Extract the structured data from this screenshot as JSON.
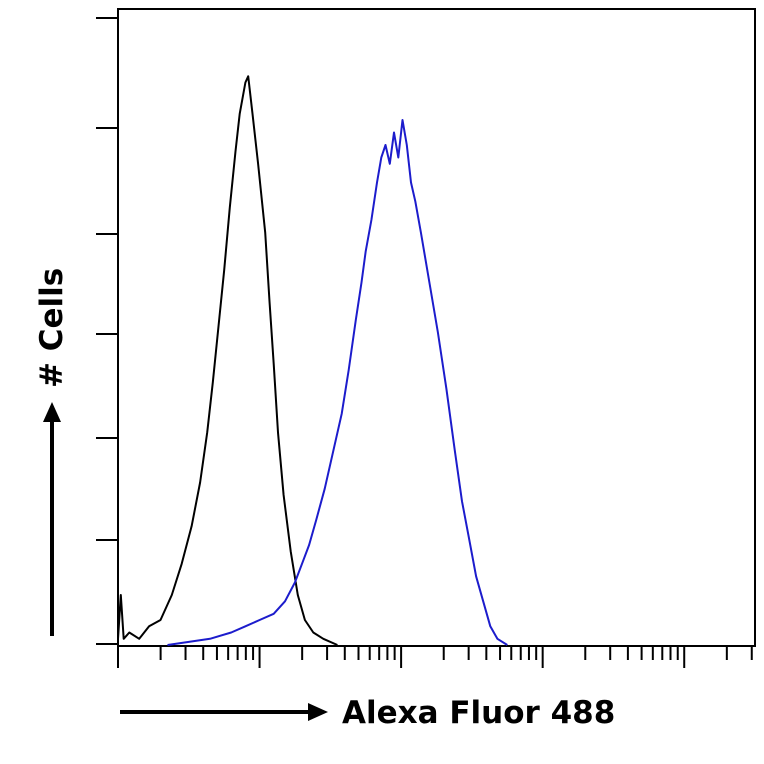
{
  "chart_data": {
    "type": "line",
    "title": "",
    "xlabel": "Alexa Fluor 488",
    "ylabel": "# Cells",
    "x_scale": "log",
    "xlim_decades": [
      0,
      4.5
    ],
    "ylim": [
      0,
      100
    ],
    "grid": false,
    "legend": "none",
    "series": [
      {
        "color": "#000000",
        "points": [
          [
            0.0,
            1
          ],
          [
            0.02,
            8
          ],
          [
            0.04,
            1
          ],
          [
            0.08,
            2
          ],
          [
            0.15,
            1
          ],
          [
            0.22,
            3
          ],
          [
            0.3,
            4
          ],
          [
            0.38,
            8
          ],
          [
            0.45,
            13
          ],
          [
            0.52,
            19
          ],
          [
            0.58,
            26
          ],
          [
            0.63,
            34
          ],
          [
            0.67,
            42
          ],
          [
            0.71,
            51
          ],
          [
            0.75,
            60
          ],
          [
            0.79,
            70
          ],
          [
            0.83,
            79
          ],
          [
            0.86,
            85
          ],
          [
            0.9,
            90
          ],
          [
            0.92,
            91
          ],
          [
            0.95,
            85
          ],
          [
            0.99,
            77
          ],
          [
            1.04,
            66
          ],
          [
            1.07,
            55
          ],
          [
            1.1,
            45
          ],
          [
            1.13,
            34
          ],
          [
            1.17,
            24
          ],
          [
            1.22,
            15
          ],
          [
            1.27,
            8
          ],
          [
            1.32,
            4
          ],
          [
            1.38,
            2
          ],
          [
            1.45,
            1
          ],
          [
            1.55,
            0
          ]
        ]
      },
      {
        "color": "#1c1ccc",
        "points": [
          [
            0.35,
            0
          ],
          [
            0.5,
            0.5
          ],
          [
            0.65,
            1
          ],
          [
            0.8,
            2
          ],
          [
            0.9,
            3
          ],
          [
            1.0,
            4
          ],
          [
            1.1,
            5
          ],
          [
            1.18,
            7
          ],
          [
            1.25,
            10
          ],
          [
            1.3,
            13
          ],
          [
            1.35,
            16
          ],
          [
            1.4,
            20
          ],
          [
            1.46,
            25
          ],
          [
            1.52,
            31
          ],
          [
            1.58,
            37
          ],
          [
            1.63,
            44
          ],
          [
            1.68,
            52
          ],
          [
            1.72,
            58
          ],
          [
            1.75,
            63
          ],
          [
            1.79,
            68
          ],
          [
            1.83,
            74
          ],
          [
            1.86,
            78
          ],
          [
            1.89,
            80
          ],
          [
            1.92,
            77
          ],
          [
            1.95,
            82
          ],
          [
            1.98,
            78
          ],
          [
            2.01,
            84
          ],
          [
            2.04,
            80
          ],
          [
            2.07,
            74
          ],
          [
            2.1,
            71
          ],
          [
            2.14,
            66
          ],
          [
            2.2,
            58
          ],
          [
            2.26,
            50
          ],
          [
            2.32,
            41
          ],
          [
            2.38,
            31
          ],
          [
            2.43,
            23
          ],
          [
            2.48,
            17
          ],
          [
            2.53,
            11
          ],
          [
            2.58,
            7
          ],
          [
            2.63,
            3
          ],
          [
            2.68,
            1
          ],
          [
            2.75,
            0
          ]
        ]
      }
    ]
  }
}
